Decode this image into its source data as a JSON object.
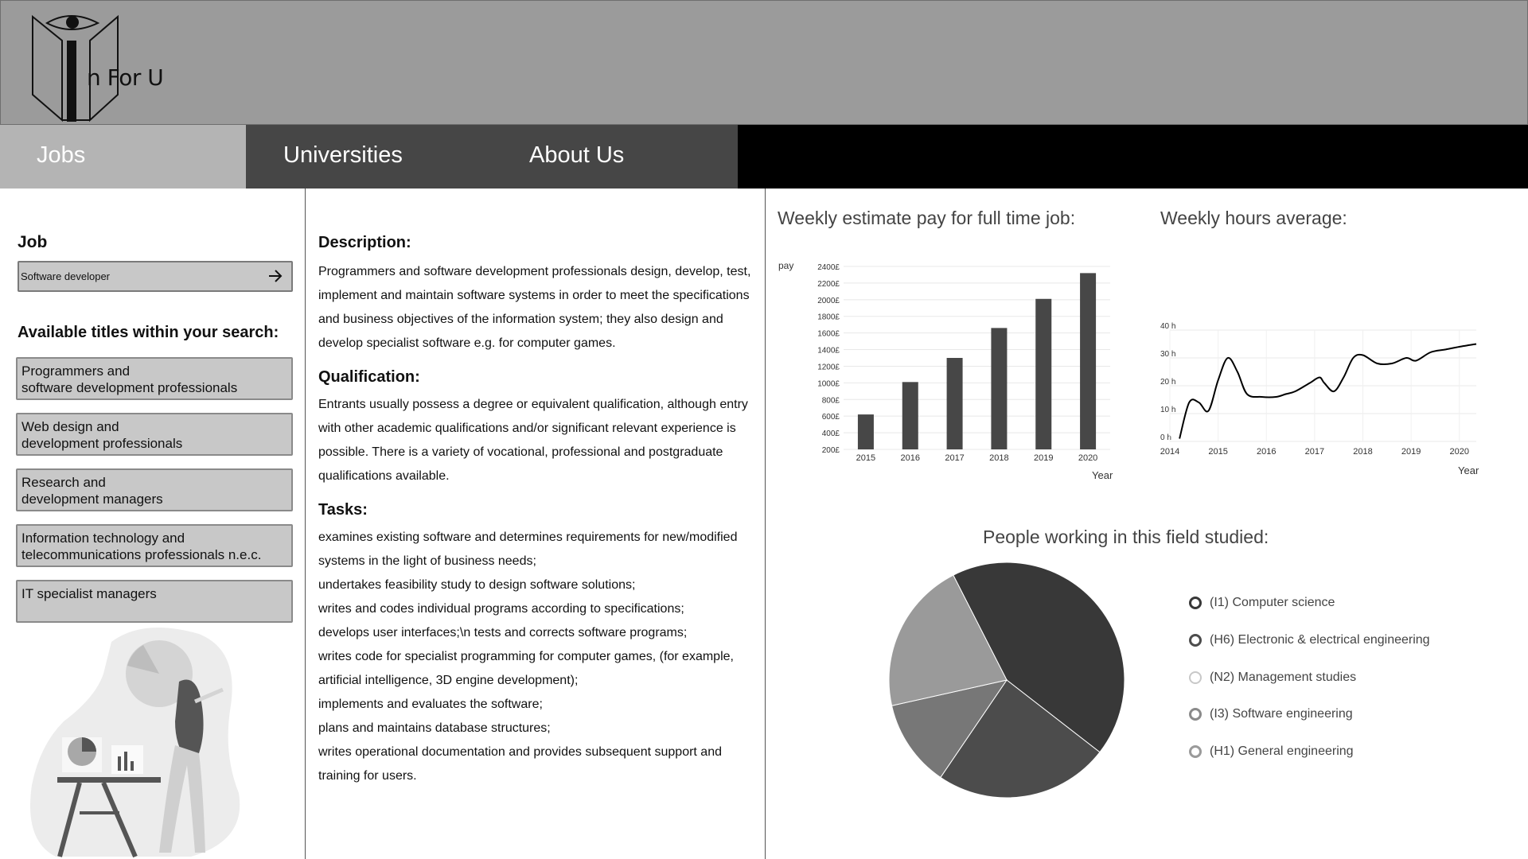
{
  "header": {
    "logo_text": "n For U"
  },
  "nav": {
    "items": [
      {
        "label": "Jobs",
        "active": true
      },
      {
        "label": "Universities"
      },
      {
        "label": "About Us"
      }
    ]
  },
  "sidebar": {
    "job_label": "Job",
    "job_value": "Software developer",
    "available_title": "Available titles within your search:",
    "titles": [
      "Programmers and\nsoftware development professionals",
      "Web design and\ndevelopment professionals",
      "Research and\ndevelopment managers",
      "Information technology and\ntelecommunications professionals n.e.c.",
      "IT specialist managers"
    ]
  },
  "details": {
    "description_title": "Description:",
    "description": "Programmers and software development professionals design, develop, test, implement and maintain software systems in order to meet the specifications and business objectives of the information system; they also design and develop specialist software e.g. for computer games.",
    "qualification_title": "Qualification:",
    "qualification": "Entrants usually possess a degree or equivalent qualification, although entry with other academic qualifications and/or significant relevant experience is possible. There is a variety of vocational, professional and postgraduate qualifications available.",
    "tasks_title": "Tasks:",
    "tasks": [
      "examines existing software and determines requirements for new/modified systems in the light of business needs;",
      "undertakes feasibility study to design software solutions;",
      "writes and codes individual programs according to specifications;",
      "develops user interfaces;\\n tests and corrects software programs;",
      "writes code for specialist programming for computer games, (for example, artificial intelligence, 3D engine development);",
      " implements and evaluates the software;",
      "plans and maintains database structures;",
      "writes operational documentation and provides subsequent support and training for users."
    ]
  },
  "chart_data": [
    {
      "type": "bar",
      "title": "Weekly estimate pay for full time job:",
      "ylabel": "pay",
      "xlabel": "Year",
      "categories": [
        "2015",
        "2016",
        "2017",
        "2018",
        "2019",
        "2020"
      ],
      "values": [
        620,
        1010,
        1300,
        1660,
        2010,
        2320
      ],
      "yticks": [
        "200£",
        "400£",
        "600£",
        "800£",
        "1000£",
        "1200£",
        "1400£",
        "1600£",
        "1800£",
        "2000£",
        "2200£",
        "2400£"
      ],
      "ylim": [
        200,
        2400
      ],
      "bar_color": "#474747"
    },
    {
      "type": "line",
      "title": "Weekly hours average:",
      "xlabel": "Year",
      "xticks": [
        "2014",
        "2015",
        "2016",
        "2017",
        "2018",
        "2019",
        "2020"
      ],
      "yticks": [
        "0 h",
        "10 h",
        "20 h",
        "30 h",
        "40 h"
      ],
      "ylim": [
        0,
        40
      ],
      "xlim": [
        2014,
        2020.35
      ],
      "x": [
        2014.2,
        2014.4,
        2014.6,
        2014.8,
        2015.0,
        2015.2,
        2015.4,
        2015.6,
        2015.9,
        2016.2,
        2016.4,
        2016.6,
        2016.9,
        2017.1,
        2017.2,
        2017.4,
        2017.6,
        2017.8,
        2018.0,
        2018.3,
        2018.6,
        2018.9,
        2019.1,
        2019.4,
        2019.7,
        2020.0,
        2020.35
      ],
      "y": [
        1,
        14,
        14,
        11,
        22,
        30,
        25,
        17,
        16,
        16,
        17,
        18,
        21,
        23,
        21,
        18,
        23,
        30,
        31,
        28,
        28,
        30,
        29,
        32,
        33,
        34,
        35
      ],
      "line_color": "#000000"
    },
    {
      "type": "pie",
      "title": "People working in this field studied:",
      "labels": [
        "(I1) Computer science",
        "(H6) Electronic & electrical engineering",
        "(N2) Management studies",
        "(I3) Software engineering",
        "(H1) General engineering"
      ],
      "values": [
        43,
        24,
        12,
        21,
        0
      ],
      "colors": [
        "#383838",
        "#4c4c4c",
        "#777777",
        "#9a9a9a",
        "#cfcfcf"
      ],
      "legend_position": "right"
    }
  ]
}
